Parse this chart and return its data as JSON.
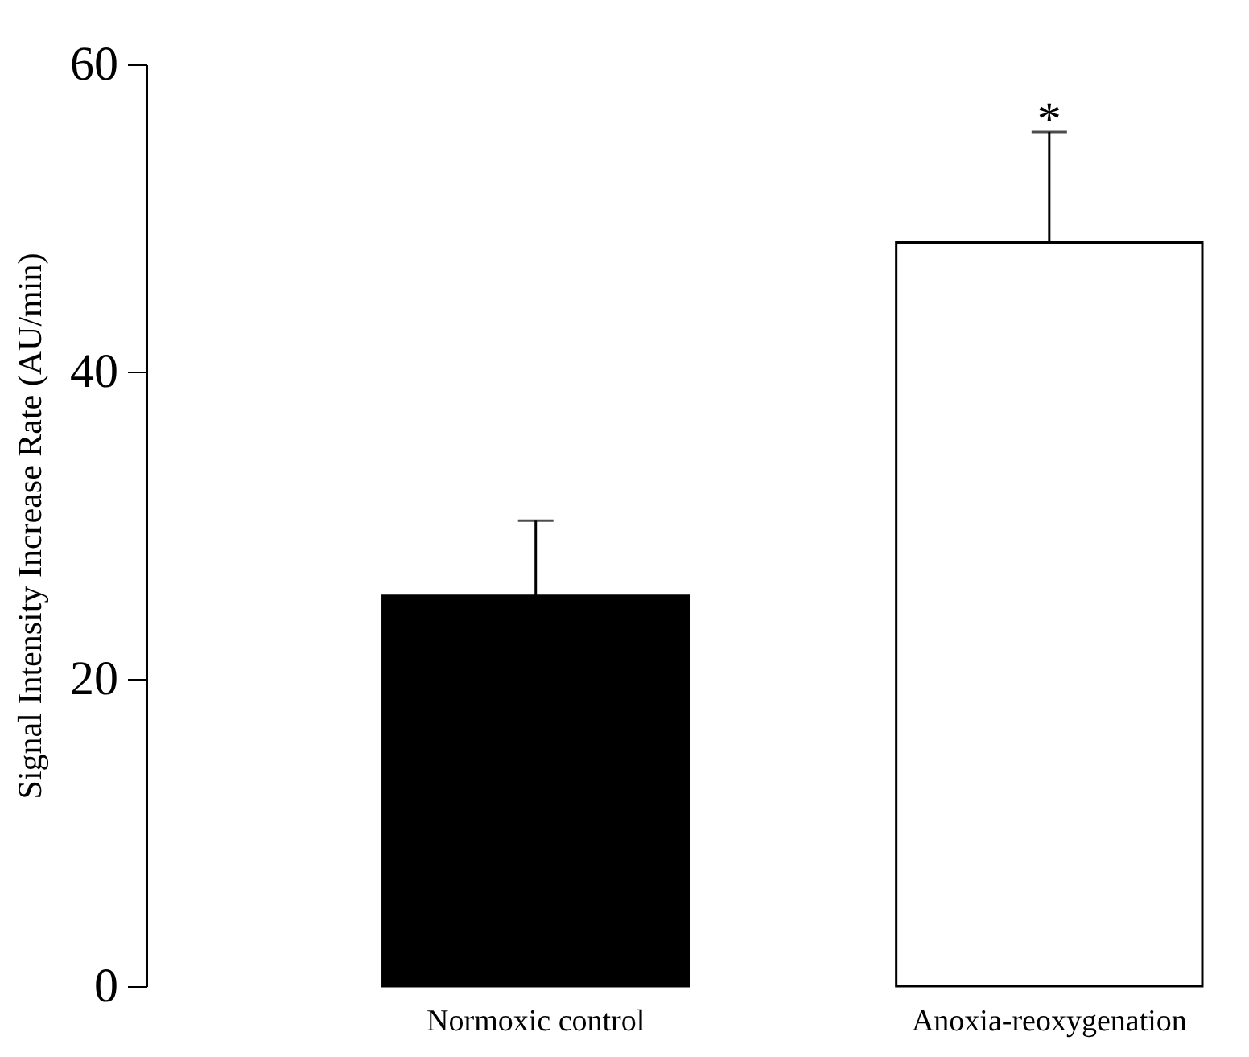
{
  "chart_data": {
    "type": "bar",
    "ylabel": "Signal Intensity Increase Rate (AU/min)",
    "categories": [
      "Normoxic control",
      "Anoxia-reoxygenation"
    ],
    "values": [
      25.4,
      48.4
    ],
    "colors": [
      "#000000",
      "#ffffff"
    ],
    "errors": [
      [
        25.4,
        30.3
      ],
      [
        48.4,
        55.6
      ]
    ],
    "ylim": [
      0,
      60
    ],
    "yticks": [
      0,
      20,
      40,
      60
    ],
    "grid": false,
    "legend": false,
    "annotations": [
      {
        "text": "*",
        "x": "Anoxia-reoxygenation",
        "y": 55.6
      }
    ]
  }
}
